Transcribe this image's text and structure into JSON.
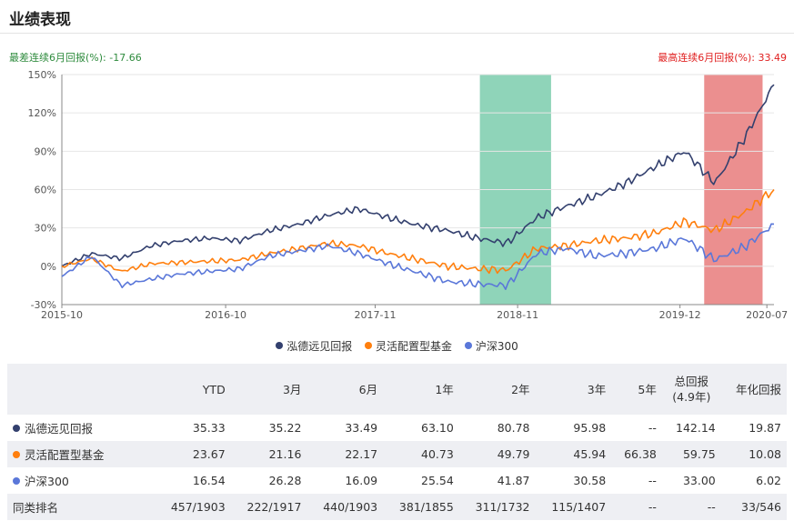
{
  "header": {
    "title": "业绩表现"
  },
  "annotations": {
    "worst_label": "最差连续6月回报(%): -17.66",
    "best_label": "最高连续6月回报(%): 33.49"
  },
  "chart_data": {
    "type": "line",
    "yticks": [
      "150%",
      "120%",
      "90%",
      "60%",
      "30%",
      "0%",
      "-30%"
    ],
    "ylim": [
      -30,
      150
    ],
    "xticks": [
      "2015-10",
      "2016-10",
      "2017-11",
      "2018-11",
      "2019-12",
      "2020-07"
    ],
    "x": [
      "2015-10",
      "2016-01",
      "2016-04",
      "2016-07",
      "2016-10",
      "2017-01",
      "2017-04",
      "2017-07",
      "2017-11",
      "2018-01",
      "2018-03",
      "2018-05",
      "2018-07",
      "2018-09",
      "2018-11",
      "2018-12",
      "2019-02",
      "2019-04",
      "2019-07",
      "2019-09",
      "2019-12",
      "2020-02",
      "2020-04",
      "2020-06",
      "2020-07"
    ],
    "series": [
      {
        "name": "泓德远见回报",
        "color": "#33406e",
        "values": [
          0,
          10,
          6,
          16,
          20,
          22,
          20,
          28,
          33,
          40,
          45,
          38,
          32,
          28,
          22,
          18,
          38,
          47,
          55,
          65,
          78,
          90,
          65,
          100,
          142
        ]
      },
      {
        "name": "灵活配置型基金",
        "color": "#ff7f0e",
        "values": [
          0,
          6,
          -4,
          2,
          3,
          4,
          5,
          10,
          14,
          18,
          16,
          10,
          5,
          0,
          -2,
          -3,
          14,
          16,
          20,
          22,
          26,
          35,
          28,
          42,
          60
        ]
      },
      {
        "name": "沪深300",
        "color": "#5a77d9",
        "values": [
          -8,
          8,
          -15,
          -10,
          -6,
          -4,
          -2,
          8,
          12,
          16,
          10,
          2,
          -5,
          -12,
          -14,
          -15,
          10,
          14,
          8,
          10,
          14,
          22,
          5,
          15,
          33
        ]
      }
    ],
    "highlights": [
      {
        "from": 0.587,
        "to": 0.687,
        "color": "#8fd4b9",
        "meaning": "最差连续6月回报"
      },
      {
        "from": 0.902,
        "to": 0.984,
        "color": "#eb8f8f",
        "meaning": "最高连续6月回报"
      }
    ]
  },
  "table": {
    "headers": [
      "",
      "YTD",
      "3月",
      "6月",
      "1年",
      "2年",
      "3年",
      "5年",
      "总回报\n(4.9年)",
      "年化回报"
    ],
    "rows": [
      {
        "name": "泓德远见回报",
        "dot": "#33406e",
        "cells": [
          "35.33",
          "35.22",
          "33.49",
          "63.10",
          "80.78",
          "95.98",
          "--",
          "142.14",
          "19.87"
        ]
      },
      {
        "name": "灵活配置型基金",
        "dot": "#ff7f0e",
        "cells": [
          "23.67",
          "21.16",
          "22.17",
          "40.73",
          "49.79",
          "45.94",
          "66.38",
          "59.75",
          "10.08"
        ]
      },
      {
        "name": "沪深300",
        "dot": "#5a77d9",
        "cells": [
          "16.54",
          "26.28",
          "16.09",
          "25.54",
          "41.87",
          "30.58",
          "--",
          "33.00",
          "6.02"
        ]
      },
      {
        "name": "同类排名",
        "dot": "",
        "cells": [
          "457/1903",
          "222/1917",
          "440/1903",
          "381/1855",
          "311/1732",
          "115/1407",
          "--",
          "--",
          "33/546"
        ]
      }
    ]
  }
}
